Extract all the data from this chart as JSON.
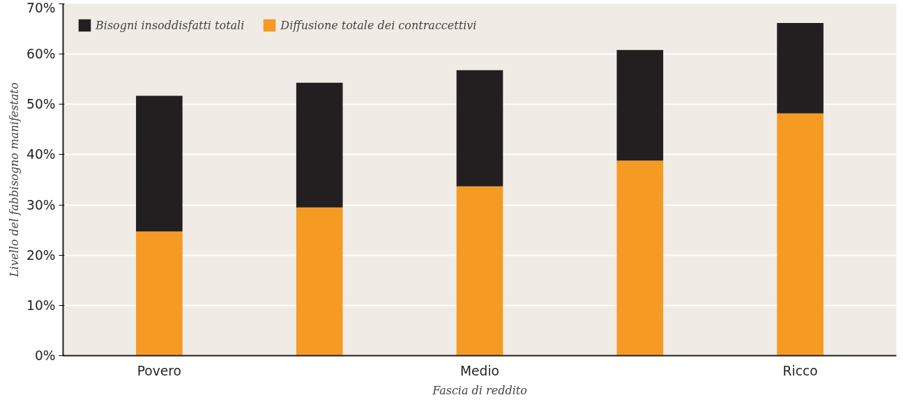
{
  "chart_data": {
    "type": "bar",
    "stacked": true,
    "xlabel": "Fascia di reddito",
    "ylabel": "Livello del fabbisogno manifestato",
    "categories": [
      "Povero",
      null,
      "Medio",
      null,
      "Ricco"
    ],
    "series": [
      {
        "name": "Diffusione totale dei contraccettivi",
        "color": "#f59a23",
        "values": [
          24.7,
          29.5,
          33.7,
          38.8,
          48.2
        ]
      },
      {
        "name": "Bisogni insoddisfatti totali",
        "color": "#231f20",
        "values": [
          27.0,
          24.8,
          23.1,
          22.0,
          18.0
        ]
      }
    ],
    "ylim": [
      0,
      70
    ],
    "yticks": [
      {
        "value": 0,
        "label": "0%"
      },
      {
        "value": 10,
        "label": "10%"
      },
      {
        "value": 20,
        "label": "20%"
      },
      {
        "value": 30,
        "label": "30%"
      },
      {
        "value": 40,
        "label": "40%"
      },
      {
        "value": 50,
        "label": "50%"
      },
      {
        "value": 60,
        "label": "60%"
      },
      {
        "value": 70,
        "label": "70%"
      }
    ],
    "grid": "y",
    "legend": "top left"
  }
}
